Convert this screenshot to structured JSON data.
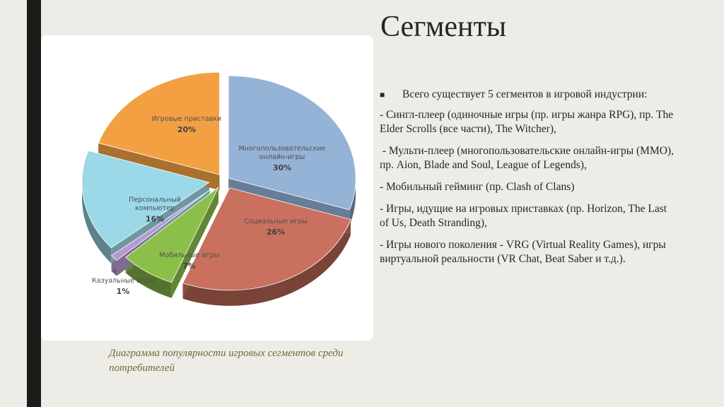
{
  "slide": {
    "title": "Сегменты",
    "bullet_intro": "Всего существует 5 сегментов в игровой индустрии:",
    "items": [
      "- Сингл-плеер (одиночные игры (пр. игры жанра RPG), пр. The Elder Scrolls (все части), The Witcher),",
      " - Мульти-плеер (многопользовательские онлайн-игры (MMO), пр. Aion, Blade and Soul, League of Legends),",
      "- Мобильный гейминг (пр. Clash of Clans)",
      "- Игры, идущие на игровых приставках (пр. Horizon, The Last of Us, Death Stranding),",
      "- Игры нового поколения - VRG (Virtual Reality Games), игры виртуальной реальности (VR Chat, Beat Saber и т.д.)."
    ],
    "caption": "Диаграмма популярности игровых сегментов среди потребителей"
  },
  "chart_data": {
    "type": "pie",
    "title": "",
    "style": "3d-exploded",
    "slices": [
      {
        "label": "Многопользовательские онлайн-игры",
        "value": 30,
        "pct": "30%",
        "color": "#95b3d7"
      },
      {
        "label": "Социальные игры",
        "value": 26,
        "pct": "26%",
        "color": "#c9705e"
      },
      {
        "label": "Мобильные игры",
        "value": 7,
        "pct": "7%",
        "color": "#8cbf4a"
      },
      {
        "label": "Казуальные игры",
        "value": 1,
        "pct": "1%",
        "color": "#b899cf"
      },
      {
        "label": "Персональный компьютер",
        "value": 16,
        "pct": "16%",
        "color": "#9bd8e8"
      },
      {
        "label": "Игровые приставки",
        "value": 20,
        "pct": "20%",
        "color": "#f2a042"
      }
    ]
  }
}
